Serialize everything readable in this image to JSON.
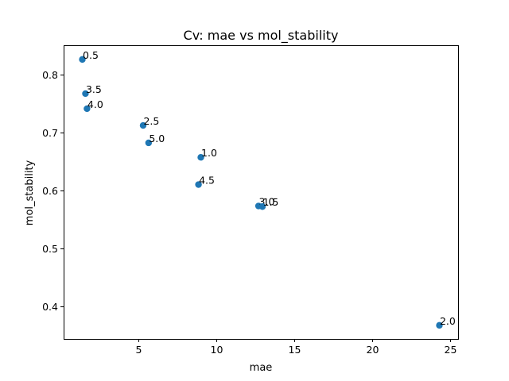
{
  "chart_data": {
    "type": "scatter",
    "title": "Cv: mae vs mol_stability",
    "xlabel": "mae",
    "ylabel": "mol_stability",
    "xlim": [
      0.2,
      25.5
    ],
    "ylim": [
      0.3435,
      0.8505
    ],
    "x_ticks": [
      5,
      10,
      15,
      20,
      25
    ],
    "x_tick_labels": [
      "5",
      "10",
      "15",
      "20",
      "25"
    ],
    "y_ticks": [
      0.4,
      0.5,
      0.6,
      0.7,
      0.8
    ],
    "y_tick_labels": [
      "0.4",
      "0.5",
      "0.6",
      "0.7",
      "0.8"
    ],
    "grid": false,
    "marker_color": "#1f77b4",
    "points": [
      {
        "label": "0.5",
        "x": 1.4,
        "y": 0.826
      },
      {
        "label": "3.5",
        "x": 1.6,
        "y": 0.767
      },
      {
        "label": "4.0",
        "x": 1.7,
        "y": 0.741
      },
      {
        "label": "2.5",
        "x": 5.3,
        "y": 0.712
      },
      {
        "label": "5.0",
        "x": 5.65,
        "y": 0.682
      },
      {
        "label": "1.0",
        "x": 9.0,
        "y": 0.657
      },
      {
        "label": "4.5",
        "x": 8.85,
        "y": 0.61
      },
      {
        "label": "3.0",
        "x": 12.7,
        "y": 0.573
      },
      {
        "label": "1.5",
        "x": 12.95,
        "y": 0.572
      },
      {
        "label": "2.0",
        "x": 24.3,
        "y": 0.367
      }
    ]
  }
}
